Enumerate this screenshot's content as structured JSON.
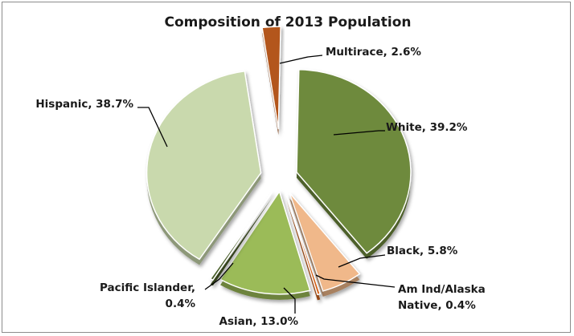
{
  "chart_data": {
    "type": "pie",
    "title": "Composition of 2013 Population",
    "categories": [
      "White",
      "Black",
      "Am Ind/Alaska Native",
      "Asian",
      "Pacific Islander",
      "Hispanic",
      "Multirace"
    ],
    "values": [
      39.2,
      5.8,
      0.4,
      13.0,
      0.4,
      38.7,
      2.6
    ],
    "labels": [
      [
        "White, 39.2%"
      ],
      [
        "Black, 5.8%"
      ],
      [
        "Am Ind/Alaska",
        "Native, 0.4%"
      ],
      [
        "Asian, 13.0%"
      ],
      [
        "Pacific Islander,",
        "0.4%"
      ],
      [
        "Hispanic, 38.7%"
      ],
      [
        "Multirace, 2.6%"
      ]
    ],
    "colors": [
      "#6e8a3c",
      "#f0b88a",
      "#d4641a",
      "#9bbb59",
      "#4a5f2a",
      "#c9d9ad",
      "#b3571a"
    ],
    "style": "exploded-3d-pie",
    "legend": "none"
  }
}
